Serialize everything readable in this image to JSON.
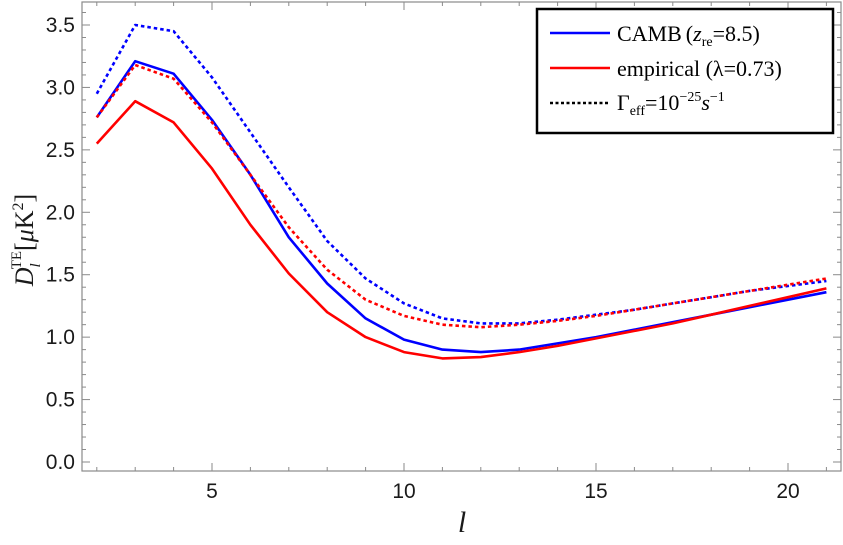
{
  "chart_data": {
    "type": "line",
    "title": "",
    "xlabel": "l",
    "ylabel": "D_l^TE [μK^2]",
    "ylabel_parts": {
      "base": "D",
      "sub": "l",
      "sup": "TE",
      "unit_open": "[",
      "unit_mu": "μ",
      "unit_K": "K",
      "unit_sup": "2",
      "unit_close": "]"
    },
    "xlim": [
      1.6,
      21.4
    ],
    "ylim": [
      -0.07,
      3.68
    ],
    "x_ticks": [
      5,
      10,
      15,
      20
    ],
    "x_tick_labels": [
      "5",
      "10",
      "15",
      "20"
    ],
    "y_ticks": [
      0.0,
      0.5,
      1.0,
      1.5,
      2.0,
      2.5,
      3.0,
      3.5
    ],
    "y_tick_labels": [
      "0.0",
      "0.5",
      "1.0",
      "1.5",
      "2.0",
      "2.5",
      "3.0",
      "3.5"
    ],
    "grid": false,
    "legend_position": "upper right",
    "x": [
      2,
      3,
      4,
      5,
      6,
      7,
      8,
      9,
      10,
      11,
      12,
      13,
      14,
      15,
      16,
      17,
      18,
      19,
      20,
      21
    ],
    "series": [
      {
        "name": "CAMB (z_re=8.5)",
        "color": "#0000ff",
        "style": "solid",
        "values": [
          2.76,
          3.21,
          3.11,
          2.74,
          2.3,
          1.8,
          1.43,
          1.15,
          0.98,
          0.9,
          0.88,
          0.9,
          0.95,
          1.0,
          1.06,
          1.12,
          1.18,
          1.24,
          1.3,
          1.36
        ]
      },
      {
        "name": "empirical (λ=0.73)",
        "color": "#ff0000",
        "style": "solid",
        "values": [
          2.55,
          2.89,
          2.72,
          2.35,
          1.9,
          1.51,
          1.2,
          1.0,
          0.88,
          0.83,
          0.84,
          0.88,
          0.93,
          0.99,
          1.05,
          1.11,
          1.18,
          1.25,
          1.32,
          1.39
        ]
      },
      {
        "name": "CAMB (z_re=8.5), Γ_eff=10^-25 s^-1",
        "color": "#0000ff",
        "style": "dashed",
        "values": [
          2.95,
          3.5,
          3.45,
          3.08,
          2.64,
          2.2,
          1.77,
          1.47,
          1.27,
          1.15,
          1.11,
          1.11,
          1.14,
          1.18,
          1.22,
          1.27,
          1.32,
          1.37,
          1.41,
          1.45
        ]
      },
      {
        "name": "empirical (λ=0.73), Γ_eff=10^-25 s^-1",
        "color": "#ff0000",
        "style": "dashed",
        "values": [
          2.76,
          3.18,
          3.07,
          2.72,
          2.3,
          1.88,
          1.54,
          1.3,
          1.17,
          1.1,
          1.08,
          1.1,
          1.13,
          1.17,
          1.22,
          1.27,
          1.32,
          1.37,
          1.42,
          1.47
        ]
      }
    ],
    "legend": [
      {
        "label_main": "CAMB",
        "label_open": "(",
        "label_var": "z",
        "label_sub": "re",
        "label_rest": "=8.5)",
        "color": "#0000ff",
        "style": "solid"
      },
      {
        "label_main": "empirical (λ=0.73)",
        "color": "#ff0000",
        "style": "solid"
      },
      {
        "label_main": "Γ",
        "label_sub": "eff",
        "label_rest": "=10",
        "label_sup": "−25",
        "label_var": "s",
        "label_sup2": "−1",
        "color": "#000000",
        "style": "dashed"
      }
    ]
  }
}
